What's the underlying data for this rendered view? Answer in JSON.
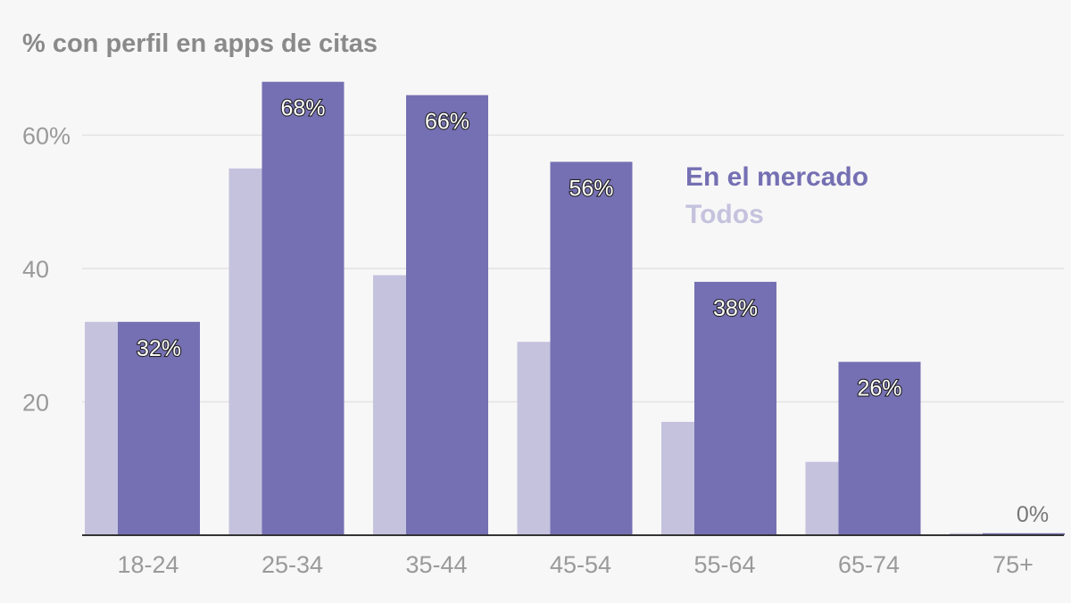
{
  "chart_data": {
    "type": "bar",
    "title": "% con perfil en apps de citas",
    "categories": [
      "18-24",
      "25-34",
      "35-44",
      "45-54",
      "55-64",
      "65-74",
      "75+"
    ],
    "series": [
      {
        "name": "Todos",
        "values": [
          32,
          55,
          39,
          29,
          17,
          11,
          0.3
        ],
        "color": "#c5c2de"
      },
      {
        "name": "En el mercado",
        "values": [
          32,
          68,
          66,
          56,
          38,
          26,
          0.3
        ],
        "color": "#7570b3"
      }
    ],
    "data_labels": [
      "32%",
      "68%",
      "66%",
      "56%",
      "38%",
      "26%",
      "0%"
    ],
    "yticks": [
      20,
      40,
      60
    ],
    "ytick_labels": [
      "20",
      "40",
      "60%"
    ],
    "ylim": [
      0,
      70
    ],
    "grid": true,
    "legend_placement": "top-right"
  }
}
